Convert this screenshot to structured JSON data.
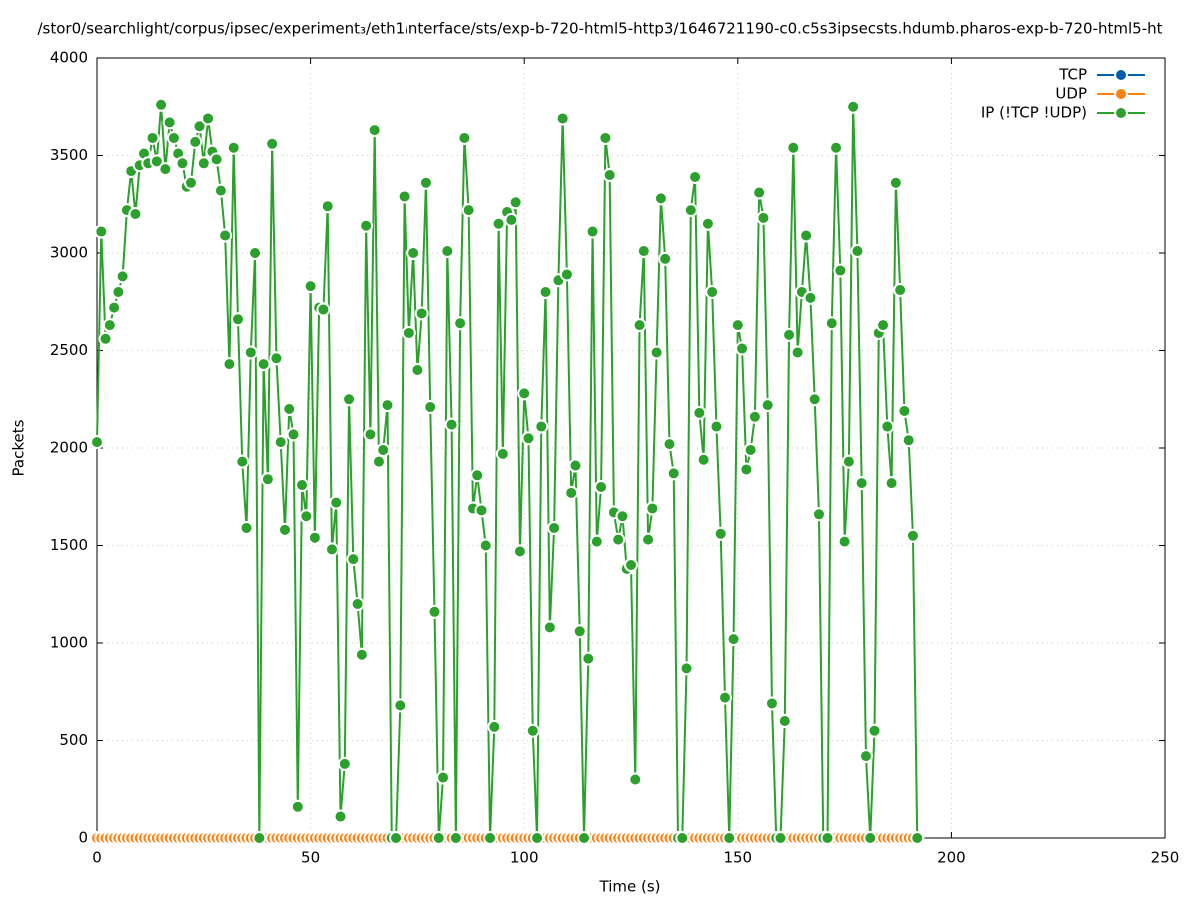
{
  "chart_data": {
    "type": "line",
    "title": "/stor0/searchlight/corpus/ipsec/experiment₃/eth1ᵢnterface/sts/exp-b-720-html5-http3/1646721190-c0.c5s3ipsecsts.hdumb.pharos-exp-b-720-html5-ht",
    "xlabel": "Time (s)",
    "ylabel": "Packets",
    "xlim": [
      0,
      250
    ],
    "xticks": [
      0,
      50,
      100,
      150,
      200,
      250
    ],
    "ylim": [
      0,
      4000
    ],
    "yticks": [
      0,
      500,
      1000,
      1500,
      2000,
      2500,
      3000,
      3500,
      4000
    ],
    "grid": true,
    "legend": "top right",
    "x": [
      0,
      1,
      2,
      3,
      4,
      5,
      6,
      7,
      8,
      9,
      10,
      11,
      12,
      13,
      14,
      15,
      16,
      17,
      18,
      19,
      20,
      21,
      22,
      23,
      24,
      25,
      26,
      27,
      28,
      29,
      30,
      31,
      32,
      33,
      34,
      35,
      36,
      37,
      38,
      39,
      40,
      41,
      42,
      43,
      44,
      45,
      46,
      47,
      48,
      49,
      50,
      51,
      52,
      53,
      54,
      55,
      56,
      57,
      58,
      59,
      60,
      61,
      62,
      63,
      64,
      65,
      66,
      67,
      68,
      69,
      70,
      71,
      72,
      73,
      74,
      75,
      76,
      77,
      78,
      79,
      80,
      81,
      82,
      83,
      84,
      85,
      86,
      87,
      88,
      89,
      90,
      91,
      92,
      93,
      94,
      95,
      96,
      97,
      98,
      99,
      100,
      101,
      102,
      103,
      104,
      105,
      106,
      107,
      108,
      109,
      110,
      111,
      112,
      113,
      114,
      115,
      116,
      117,
      118,
      119,
      120,
      121,
      122,
      123,
      124,
      125,
      126,
      127,
      128,
      129,
      130,
      131,
      132,
      133,
      134,
      135,
      136,
      137,
      138,
      139,
      140,
      141,
      142,
      143,
      144,
      145,
      146,
      147,
      148,
      149,
      150,
      151,
      152,
      153,
      154,
      155,
      156,
      157,
      158,
      159,
      160,
      161,
      162,
      163,
      164,
      165,
      166,
      167,
      168,
      169,
      170,
      171,
      172,
      173,
      174,
      175,
      176,
      177,
      178,
      179,
      180,
      181,
      182,
      183,
      184,
      185,
      186,
      187,
      188,
      189,
      190,
      191,
      192
    ],
    "series": [
      {
        "name": "TCP",
        "color": "#0060ad",
        "values": [
          0,
          0,
          0,
          0,
          0,
          0,
          0,
          0,
          0,
          0,
          0,
          0,
          0,
          0,
          0,
          0,
          0,
          0,
          0,
          0,
          0,
          0,
          0,
          0,
          0,
          0,
          0,
          0,
          0,
          0,
          0,
          0,
          0,
          0,
          0,
          0,
          0,
          0,
          0,
          0,
          0,
          0,
          0,
          0,
          0,
          0,
          0,
          0,
          0,
          0,
          0,
          0,
          0,
          0,
          0,
          0,
          0,
          0,
          0,
          0,
          0,
          0,
          0,
          0,
          0,
          0,
          0,
          0,
          0,
          0,
          0,
          0,
          0,
          0,
          0,
          0,
          0,
          0,
          0,
          0,
          0,
          0,
          0,
          0,
          0,
          0,
          0,
          0,
          0,
          0,
          0,
          0,
          0,
          0,
          0,
          0,
          0,
          0,
          0,
          0,
          0,
          0,
          0,
          0,
          0,
          0,
          0,
          0,
          0,
          0,
          0,
          0,
          0,
          0,
          0,
          0,
          0,
          0,
          0,
          0,
          0,
          0,
          0,
          0,
          0,
          0,
          0,
          0,
          0,
          0,
          0,
          0,
          0,
          0,
          0,
          0,
          0,
          0,
          0,
          0,
          0,
          0,
          0,
          0,
          0,
          0,
          0,
          0,
          0,
          0,
          0,
          0,
          0,
          0,
          0,
          0,
          0,
          0,
          0,
          0,
          0,
          0,
          0,
          0,
          0,
          0,
          0,
          0,
          0,
          0,
          0,
          0,
          0,
          0,
          0,
          0,
          0,
          0,
          0,
          0,
          0,
          0,
          0,
          0,
          0,
          0,
          0,
          0,
          0,
          0,
          0,
          0,
          0
        ]
      },
      {
        "name": "UDP",
        "color": "#ff7f0e",
        "values": [
          0,
          0,
          0,
          0,
          0,
          0,
          0,
          0,
          0,
          0,
          0,
          0,
          0,
          0,
          0,
          0,
          0,
          0,
          0,
          0,
          0,
          0,
          0,
          0,
          0,
          0,
          0,
          0,
          0,
          0,
          0,
          0,
          0,
          0,
          0,
          0,
          0,
          0,
          0,
          0,
          0,
          0,
          0,
          0,
          0,
          0,
          0,
          0,
          0,
          0,
          0,
          0,
          0,
          0,
          0,
          0,
          0,
          0,
          0,
          0,
          0,
          0,
          0,
          0,
          0,
          0,
          0,
          0,
          0,
          0,
          0,
          0,
          0,
          0,
          0,
          0,
          0,
          0,
          0,
          0,
          0,
          0,
          0,
          0,
          0,
          0,
          0,
          0,
          0,
          0,
          0,
          0,
          0,
          0,
          0,
          0,
          0,
          0,
          0,
          0,
          0,
          0,
          0,
          0,
          0,
          0,
          0,
          0,
          0,
          0,
          0,
          0,
          0,
          0,
          0,
          0,
          0,
          0,
          0,
          0,
          0,
          0,
          0,
          0,
          0,
          0,
          0,
          0,
          0,
          0,
          0,
          0,
          0,
          0,
          0,
          0,
          0,
          0,
          0,
          0,
          0,
          0,
          0,
          0,
          0,
          0,
          0,
          0,
          0,
          0,
          0,
          0,
          0,
          0,
          0,
          0,
          0,
          0,
          0,
          0,
          0,
          0,
          0,
          0,
          0,
          0,
          0,
          0,
          0,
          0,
          0,
          0,
          0,
          0,
          0,
          0,
          0,
          0,
          0,
          0,
          0,
          0,
          0,
          0,
          0,
          0,
          0,
          0,
          0,
          0,
          0,
          0,
          0
        ]
      },
      {
        "name": "IP (!TCP  !UDP)",
        "color": "#2ca02c",
        "values": [
          2030,
          3110,
          2560,
          2630,
          2720,
          2800,
          2880,
          3220,
          3420,
          3200,
          3450,
          3510,
          3460,
          3590,
          3470,
          3760,
          3430,
          3670,
          3590,
          3510,
          3460,
          3340,
          3360,
          3570,
          3650,
          3460,
          3690,
          3520,
          3480,
          3320,
          3090,
          2430,
          3540,
          2660,
          1930,
          1590,
          2490,
          3000,
          0,
          2430,
          1840,
          3560,
          2460,
          2030,
          1580,
          2200,
          2070,
          160,
          1810,
          1650,
          2830,
          1540,
          2720,
          2710,
          3240,
          1480,
          1720,
          110,
          380,
          2250,
          1430,
          1200,
          940,
          3140,
          2070,
          3630,
          1930,
          1990,
          2220,
          0,
          0,
          680,
          3290,
          2590,
          3000,
          2400,
          2690,
          3360,
          2210,
          1160,
          0,
          310,
          3010,
          2120,
          0,
          2640,
          3590,
          3220,
          1690,
          1860,
          1680,
          1500,
          0,
          570,
          3150,
          1970,
          3210,
          3170,
          3260,
          1470,
          2280,
          2050,
          550,
          0,
          2110,
          2800,
          1080,
          1590,
          2860,
          3690,
          2890,
          1770,
          1910,
          1060,
          0,
          920,
          3110,
          1520,
          1800,
          3590,
          3400,
          1670,
          1530,
          1650,
          1380,
          1400,
          300,
          2630,
          3010,
          1530,
          1690,
          2490,
          3280,
          2970,
          2020,
          1870,
          0,
          0,
          870,
          3220,
          3390,
          2180,
          1940,
          3150,
          2800,
          2110,
          1560,
          720,
          0,
          1020,
          2630,
          2510,
          1890,
          1990,
          2160,
          3310,
          3180,
          2220,
          690,
          0,
          0,
          600,
          2580,
          3540,
          2490,
          2800,
          3090,
          2770,
          2250,
          1660,
          0,
          0,
          2640,
          3540,
          2910,
          1520,
          1930,
          3750,
          3010,
          1820,
          420,
          0,
          550,
          2590,
          2630,
          2110,
          1820,
          3360,
          2810,
          2190,
          2040,
          1550,
          0
        ]
      }
    ]
  }
}
